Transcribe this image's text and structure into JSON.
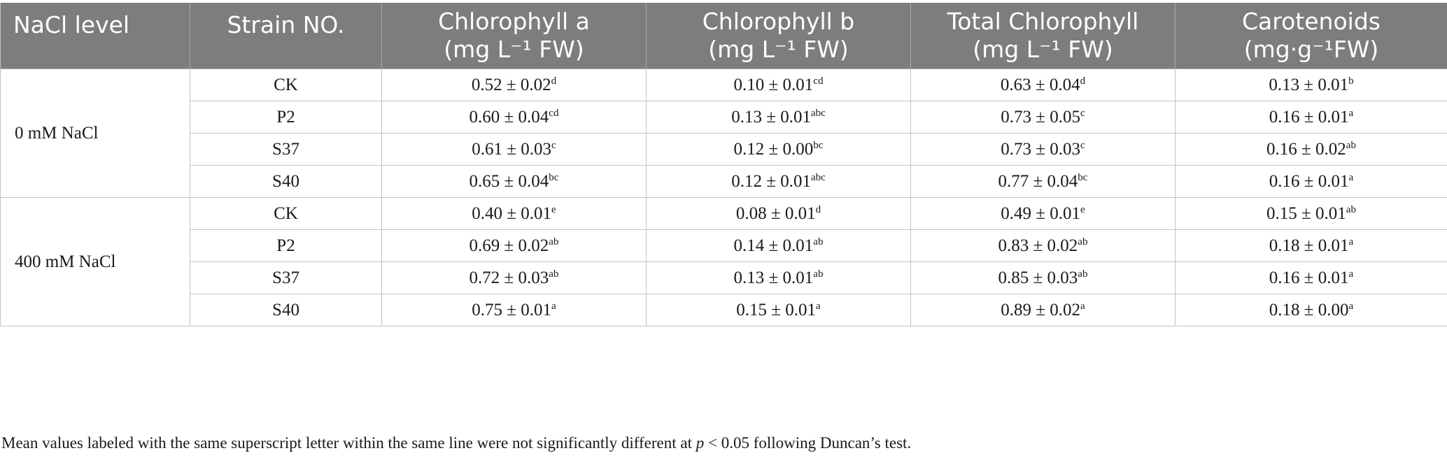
{
  "table": {
    "headers": [
      {
        "line1": "NaCl level",
        "line2": ""
      },
      {
        "line1": "Strain NO.",
        "line2": ""
      },
      {
        "line1": "Chlorophyll a",
        "line2": "(mg L⁻¹ FW)"
      },
      {
        "line1": "Chlorophyll b",
        "line2": "(mg L⁻¹ FW)"
      },
      {
        "line1": "Total Chlorophyll",
        "line2": "(mg L⁻¹ FW)"
      },
      {
        "line1": "Carotenoids",
        "line2": "(mg·g⁻¹FW)"
      }
    ],
    "groups": [
      {
        "label": "0 mM NaCl",
        "rows": [
          {
            "strain": "CK",
            "chl_a": {
              "v": "0.52 ± 0.02",
              "s": "d"
            },
            "chl_b": {
              "v": "0.10 ± 0.01",
              "s": "cd"
            },
            "total": {
              "v": "0.63 ± 0.04",
              "s": "d"
            },
            "carot": {
              "v": "0.13 ± 0.01",
              "s": "b"
            }
          },
          {
            "strain": "P2",
            "chl_a": {
              "v": "0.60 ± 0.04",
              "s": "cd"
            },
            "chl_b": {
              "v": "0.13 ± 0.01",
              "s": "abc"
            },
            "total": {
              "v": "0.73 ± 0.05",
              "s": "c"
            },
            "carot": {
              "v": "0.16 ± 0.01",
              "s": "a"
            }
          },
          {
            "strain": "S37",
            "chl_a": {
              "v": "0.61 ± 0.03",
              "s": "c"
            },
            "chl_b": {
              "v": "0.12 ± 0.00",
              "s": "bc"
            },
            "total": {
              "v": "0.73 ± 0.03",
              "s": "c"
            },
            "carot": {
              "v": "0.16 ± 0.02",
              "s": "ab"
            }
          },
          {
            "strain": "S40",
            "chl_a": {
              "v": "0.65 ± 0.04",
              "s": "bc"
            },
            "chl_b": {
              "v": "0.12 ± 0.01",
              "s": "abc"
            },
            "total": {
              "v": "0.77 ± 0.04",
              "s": "bc"
            },
            "carot": {
              "v": "0.16 ± 0.01",
              "s": "a"
            }
          }
        ]
      },
      {
        "label": "400 mM NaCl",
        "rows": [
          {
            "strain": "CK",
            "chl_a": {
              "v": "0.40 ± 0.01",
              "s": "e"
            },
            "chl_b": {
              "v": "0.08 ± 0.01",
              "s": "d"
            },
            "total": {
              "v": "0.49 ± 0.01",
              "s": "e"
            },
            "carot": {
              "v": "0.15 ± 0.01",
              "s": "ab"
            }
          },
          {
            "strain": "P2",
            "chl_a": {
              "v": "0.69 ± 0.02",
              "s": "ab"
            },
            "chl_b": {
              "v": "0.14 ± 0.01",
              "s": "ab"
            },
            "total": {
              "v": "0.83 ± 0.02",
              "s": "ab"
            },
            "carot": {
              "v": "0.18 ± 0.01",
              "s": "a"
            }
          },
          {
            "strain": "S37",
            "chl_a": {
              "v": "0.72 ± 0.03",
              "s": "ab"
            },
            "chl_b": {
              "v": "0.13 ± 0.01",
              "s": "ab"
            },
            "total": {
              "v": "0.85 ± 0.03",
              "s": "ab"
            },
            "carot": {
              "v": "0.16 ± 0.01",
              "s": "a"
            }
          },
          {
            "strain": "S40",
            "chl_a": {
              "v": "0.75 ± 0.01",
              "s": "a"
            },
            "chl_b": {
              "v": "0.15 ± 0.01",
              "s": "a"
            },
            "total": {
              "v": "0.89 ± 0.02",
              "s": "a"
            },
            "carot": {
              "v": "0.18 ± 0.00",
              "s": "a"
            }
          }
        ]
      }
    ]
  },
  "footnote": {
    "before": "Mean values labeled with the same superscript letter within the same line were not significantly different at ",
    "italic": "p",
    "after": " < 0.05 following Duncan’s test."
  },
  "colors": {
    "header_bg": "#7d7d7c",
    "header_text": "#ffffff",
    "grid_line": "#c3c3c3"
  }
}
